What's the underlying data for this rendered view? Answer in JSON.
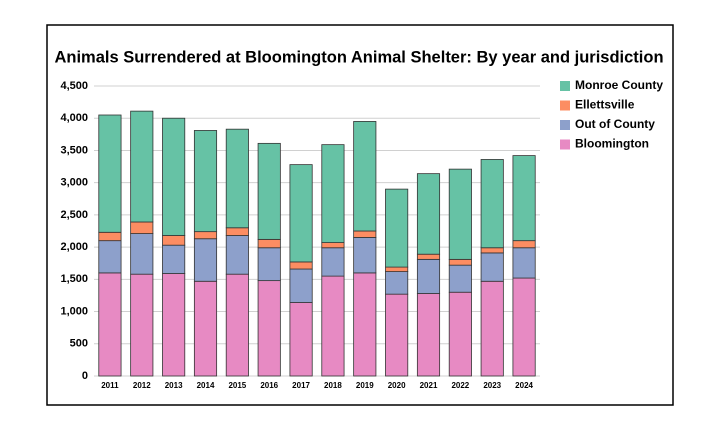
{
  "chart_data": {
    "type": "stacked_bar",
    "title": "Animals Surrendered at Bloomington Animal Shelter: By year and jurisdiction",
    "categories": [
      "2011",
      "2012",
      "2013",
      "2014",
      "2015",
      "2016",
      "2017",
      "2018",
      "2019",
      "2020",
      "2021",
      "2022",
      "2023",
      "2024"
    ],
    "series": [
      {
        "name": "Bloomington",
        "color": "#e78ac3",
        "values": [
          1600,
          1580,
          1590,
          1470,
          1580,
          1480,
          1140,
          1550,
          1600,
          1270,
          1280,
          1300,
          1470,
          1520
        ]
      },
      {
        "name": "Out of County",
        "color": "#8da0cb",
        "values": [
          500,
          630,
          440,
          660,
          600,
          510,
          520,
          440,
          550,
          350,
          530,
          420,
          440,
          470
        ]
      },
      {
        "name": "Ellettsville",
        "color": "#fc8d62",
        "values": [
          130,
          180,
          150,
          110,
          120,
          130,
          110,
          80,
          100,
          70,
          80,
          90,
          80,
          110
        ]
      },
      {
        "name": "Monroe County",
        "color": "#66c2a5",
        "values": [
          1820,
          1720,
          1820,
          1570,
          1530,
          1490,
          1510,
          1520,
          1700,
          1210,
          1250,
          1400,
          1370,
          1320
        ]
      }
    ],
    "ylim": [
      0,
      4500
    ],
    "yticks": [
      0,
      500,
      {
        "value": 1000,
        "label": "1,000"
      },
      {
        "value": 1500,
        "label": "1,500"
      },
      {
        "value": 2000,
        "label": "2,000"
      },
      {
        "value": 2500,
        "label": "2,500"
      },
      {
        "value": 3000,
        "label": "3,000"
      },
      {
        "value": 3500,
        "label": "3,500"
      },
      {
        "value": 4000,
        "label": "4,000"
      },
      {
        "value": 4500,
        "label": "4,500"
      }
    ],
    "grid": true,
    "legend": "right"
  }
}
